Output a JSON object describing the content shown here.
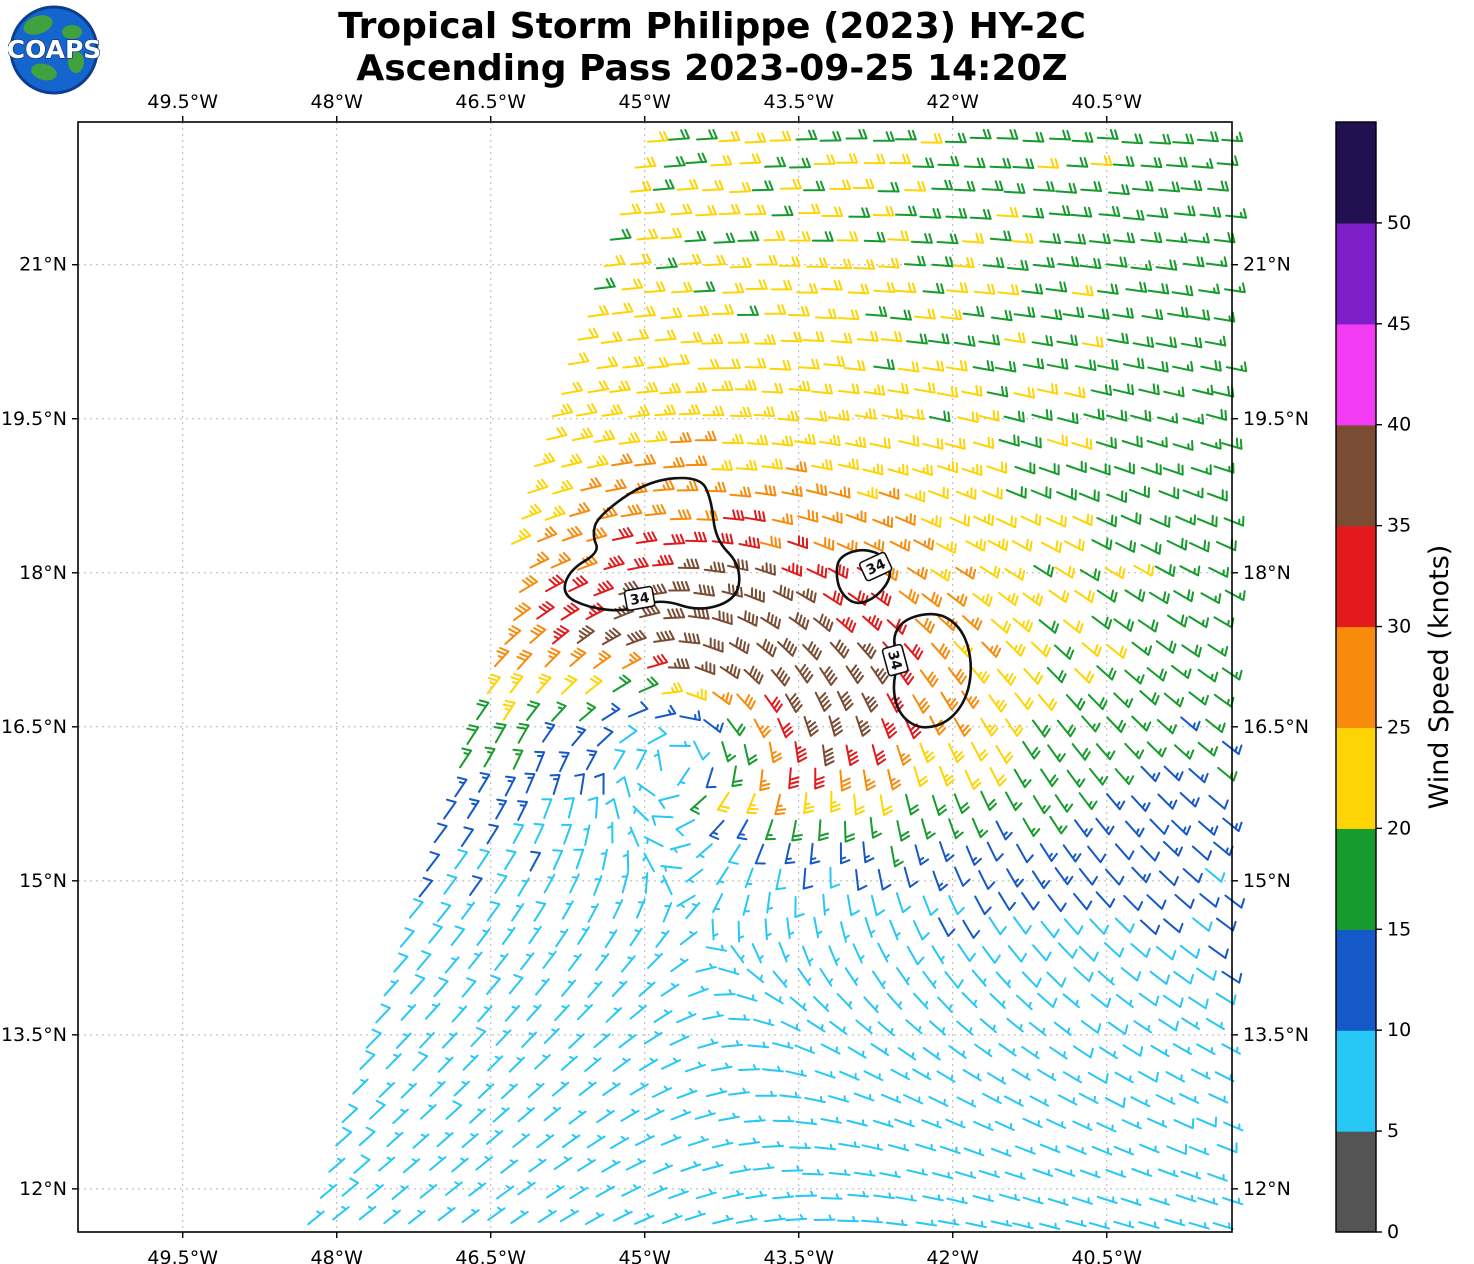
{
  "header": {
    "title_line1": "Tropical Storm Philippe (2023) HY-2C",
    "title_line2": "Ascending Pass 2023-09-25 14:20Z",
    "logo_text": "COAPS"
  },
  "chart_data": {
    "type": "scatter",
    "variant": "satellite-scatterometer-wind-barb-map",
    "title": "Tropical Storm Philippe (2023) HY-2C",
    "subtitle": "Ascending Pass 2023-09-25 14:20Z",
    "x_axis": {
      "label": "",
      "tick_labels": [
        "49.5°W",
        "48°W",
        "46.5°W",
        "45°W",
        "43.5°W",
        "42°W",
        "40.5°W"
      ],
      "tick_values": [
        -49.5,
        -48,
        -46.5,
        -45,
        -43.5,
        -42,
        -40.5
      ],
      "range": [
        -50.52,
        -39.28
      ]
    },
    "y_axis": {
      "label": "",
      "tick_labels": [
        "21°N",
        "19.5°N",
        "18°N",
        "16.5°N",
        "15°N",
        "13.5°N",
        "12°N"
      ],
      "tick_values": [
        21,
        19.5,
        18,
        16.5,
        15,
        13.5,
        12
      ],
      "range": [
        11.58,
        22.39
      ]
    },
    "grid": {
      "on": true,
      "style": "dashed",
      "color": "#b5b5b5",
      "spacing_deg": 0.245
    },
    "colorbar": {
      "label": "Wind Speed (knots)",
      "ticks": [
        0,
        5,
        10,
        15,
        20,
        25,
        30,
        35,
        40,
        45,
        50
      ],
      "bin_edges": [
        0,
        5,
        10,
        15,
        20,
        25,
        30,
        35,
        40,
        45,
        50,
        55
      ],
      "colors": [
        "#545454",
        "#27C8F5",
        "#1558C8",
        "#169C2C",
        "#FFD404",
        "#F98B0C",
        "#E31A1C",
        "#7A4C33",
        "#F43BF4",
        "#7D1EC8",
        "#221050"
      ]
    },
    "swath": {
      "description": "data only east of a diagonal swath edge",
      "lon_min_intercept": -51.77,
      "lon_min_per_lat": 0.299
    },
    "wind_field": {
      "description": "estimated cyclonic wind field of Tropical Storm Philippe read from barb colors",
      "center_lat": 16.6,
      "center_lon": -44.8,
      "rmax_deg": 0.85,
      "vmax_kt": 30,
      "decay_exp": 1.0,
      "ellipse_x": 1.9,
      "asym_amp": 0.55,
      "asym_dir_deg": 35,
      "asym_radius_deg": 3,
      "bg_u0_kt": 9,
      "bg_u_per_lat": 0.6,
      "bg_v_kt": -1.5,
      "speed_floor_kt": 5.5,
      "speed_cap_kt": 39
    },
    "estimated_speed_regions": [
      {
        "region": "storm core arc 17.5-18.5N, 43-46W",
        "wind_kt": "30-40 (red/brown)"
      },
      {
        "region": "inside 34-kt contours",
        "wind_kt": ">34"
      },
      {
        "region": "bands north and east of core",
        "wind_kt": "20-30 (yellow/orange)"
      },
      {
        "region": "far field north and east",
        "wind_kt": "15-20 (green)"
      },
      {
        "region": "south and southwest of storm",
        "wind_kt": "5-15 (cyan/blue)"
      }
    ],
    "contours": {
      "level_kt": 34,
      "paths": [
        [
          [
            -45.46,
            18.55
          ],
          [
            -44.97,
            18.9
          ],
          [
            -44.46,
            18.94
          ],
          [
            -44.35,
            18.71
          ],
          [
            -44.31,
            18.32
          ],
          [
            -44.07,
            18.08
          ],
          [
            -44.09,
            17.75
          ],
          [
            -44.46,
            17.62
          ],
          [
            -44.85,
            17.75
          ],
          [
            -45.19,
            17.62
          ],
          [
            -45.55,
            17.66
          ],
          [
            -45.81,
            17.79
          ],
          [
            -45.73,
            18.03
          ],
          [
            -45.44,
            18.2
          ],
          [
            -45.51,
            18.36
          ]
        ],
        [
          [
            -43.1,
            18.16
          ],
          [
            -42.88,
            18.24
          ],
          [
            -42.65,
            18.16
          ],
          [
            -42.59,
            17.97
          ],
          [
            -42.73,
            17.77
          ],
          [
            -42.94,
            17.68
          ],
          [
            -43.1,
            17.81
          ],
          [
            -43.14,
            18.01
          ]
        ],
        [
          [
            -42.46,
            17.56
          ],
          [
            -42.14,
            17.62
          ],
          [
            -41.91,
            17.46
          ],
          [
            -41.81,
            17.15
          ],
          [
            -41.85,
            16.8
          ],
          [
            -42.03,
            16.55
          ],
          [
            -42.3,
            16.47
          ],
          [
            -42.51,
            16.6
          ],
          [
            -42.59,
            16.86
          ],
          [
            -42.53,
            17.15
          ],
          [
            -42.59,
            17.38
          ]
        ]
      ],
      "labels": [
        {
          "text": "34",
          "lon": -45.05,
          "lat": 17.75,
          "rot": -10
        },
        {
          "text": "34",
          "lon": -42.75,
          "lat": 18.06,
          "rot": -25
        },
        {
          "text": "34",
          "lon": -42.56,
          "lat": 17.15,
          "rot": 75
        }
      ]
    }
  }
}
